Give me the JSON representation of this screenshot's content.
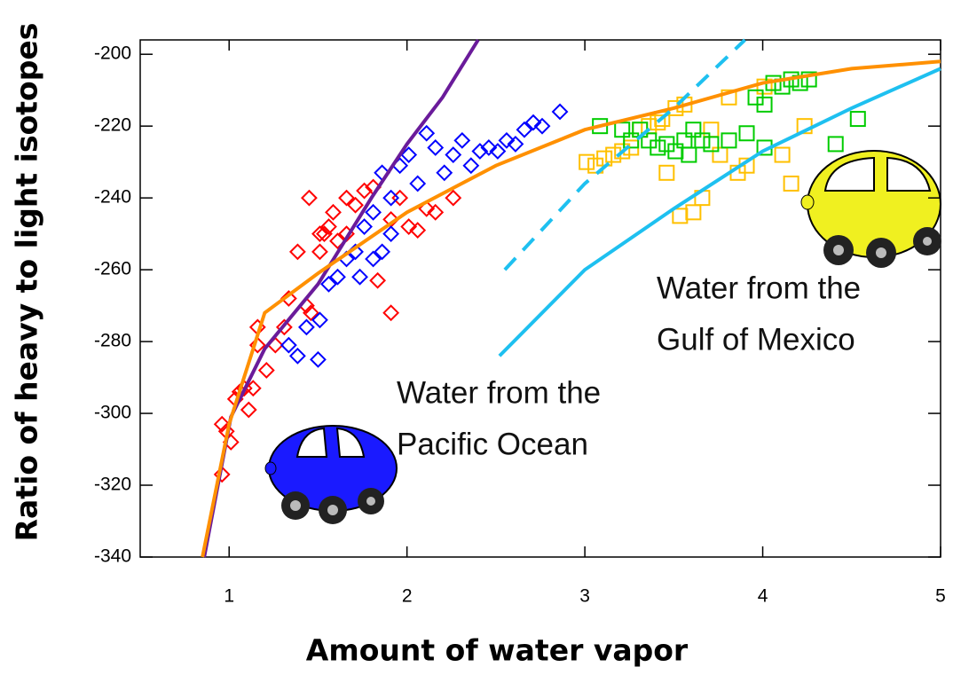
{
  "chart_data": {
    "type": "scatter",
    "xlabel": "Amount of water vapor",
    "ylabel": "Ratio of heavy to light isotopes",
    "xlim": [
      0.5,
      5
    ],
    "xticks": [
      1,
      2,
      3,
      4,
      5
    ],
    "ylim": [
      -340,
      -196
    ],
    "yticks": [
      -200,
      -220,
      -240,
      -260,
      -280,
      -300,
      -320,
      -340
    ],
    "series": [
      {
        "mode": "markers",
        "marker": "diamond",
        "color": "#ff0000",
        "x": [
          0.96,
          0.985,
          1.01,
          1.035,
          1.06,
          1.085,
          1.11,
          1.135,
          1.16,
          1.16,
          1.21,
          1.26,
          1.31,
          1.335,
          1.385,
          1.435,
          1.46,
          1.51,
          1.51,
          1.535,
          1.56,
          1.585,
          1.61,
          1.66,
          1.66,
          1.71,
          1.76,
          1.81,
          1.835,
          1.91,
          1.91,
          1.96,
          2.01,
          2.06,
          2.11,
          2.16,
          2.26,
          0.96,
          1.45
        ],
        "values": [
          -303,
          -305,
          -308,
          -296,
          -294,
          -293,
          -299,
          -293,
          -281,
          -276,
          -288,
          -281,
          -276,
          -268,
          -255,
          -270,
          -272,
          -255,
          -250,
          -250,
          -248,
          -244,
          -252,
          -250,
          -240,
          -242,
          -238,
          -237,
          -263,
          -272,
          -246,
          -240,
          -248,
          -249,
          -243,
          -244,
          -240,
          -317,
          -240
        ]
      },
      {
        "mode": "markers",
        "marker": "diamond",
        "color": "#0000ff",
        "x": [
          1.335,
          1.385,
          1.435,
          1.5,
          1.51,
          1.56,
          1.61,
          1.66,
          1.71,
          1.735,
          1.76,
          1.81,
          1.86,
          1.91,
          1.96,
          2.01,
          2.06,
          2.11,
          2.16,
          2.21,
          2.26,
          2.31,
          2.36,
          2.41,
          2.46,
          2.51,
          2.56,
          2.61,
          2.66,
          2.71,
          2.76,
          2.86,
          1.91,
          1.81,
          1.86
        ],
        "values": [
          -281,
          -284,
          -276,
          -285,
          -274,
          -264,
          -262,
          -257,
          -255,
          -262,
          -248,
          -244,
          -233,
          -240,
          -231,
          -228,
          -236,
          -222,
          -226,
          -233,
          -228,
          -224,
          -231,
          -227,
          -226,
          -227,
          -224,
          -225,
          -221,
          -219,
          -220,
          -216,
          -250,
          -257,
          -255
        ]
      },
      {
        "mode": "markers",
        "marker": "square",
        "color": "#ffc000",
        "x": [
          3.01,
          3.06,
          3.11,
          3.16,
          3.21,
          3.26,
          3.31,
          3.36,
          3.41,
          3.435,
          3.51,
          3.56,
          3.61,
          3.66,
          3.71,
          3.81,
          3.86,
          3.91,
          4.01,
          4.11,
          4.16,
          4.235,
          3.46,
          3.535,
          3.76
        ],
        "values": [
          -230,
          -231,
          -229,
          -228,
          -227,
          -226,
          -221,
          -220,
          -219,
          -218,
          -215,
          -214,
          -244,
          -240,
          -221,
          -212,
          -233,
          -231,
          -209,
          -228,
          -236,
          -220,
          -233,
          -245,
          -228
        ]
      },
      {
        "mode": "markers",
        "marker": "square",
        "color": "#00cc00",
        "x": [
          3.085,
          3.21,
          3.26,
          3.31,
          3.36,
          3.41,
          3.46,
          3.51,
          3.56,
          3.585,
          3.61,
          3.66,
          3.71,
          3.81,
          3.91,
          3.96,
          4.01,
          4.06,
          4.11,
          4.16,
          4.21,
          4.26,
          4.01,
          4.41,
          4.535
        ],
        "values": [
          -220,
          -221,
          -224,
          -221,
          -224,
          -226,
          -225,
          -227,
          -224,
          -228,
          -221,
          -224,
          -225,
          -224,
          -222,
          -212,
          -214,
          -208,
          -209,
          -207,
          -208,
          -207,
          -226,
          -225,
          -218
        ]
      },
      {
        "mode": "line",
        "color": "#6a1b9a",
        "x": [
          0.86,
          1.01,
          1.2,
          1.5,
          1.8,
          2.0,
          2.2,
          2.4
        ],
        "values": [
          -340,
          -301,
          -282,
          -264,
          -240,
          -225,
          -212,
          -196
        ]
      },
      {
        "mode": "line",
        "color": "#ff9000",
        "x": [
          0.85,
          1.0,
          1.2,
          1.5,
          2.0,
          2.5,
          3.0,
          3.5,
          4.0,
          4.5,
          5.0
        ],
        "values": [
          -340,
          -303,
          -272,
          -261,
          -244,
          -231,
          -221,
          -215,
          -208,
          -204,
          -202
        ]
      },
      {
        "mode": "line",
        "dash": true,
        "color": "#1ec0f0",
        "x": [
          2.55,
          3.0,
          3.5,
          3.9
        ],
        "values": [
          -260,
          -236,
          -215,
          -196
        ]
      },
      {
        "mode": "line",
        "color": "#1ec0f0",
        "x": [
          2.52,
          3.0,
          3.5,
          4.0,
          4.5,
          5.0
        ],
        "values": [
          -284,
          -260,
          -243,
          -227,
          -215,
          -204
        ]
      }
    ],
    "annotations": [
      [
        "Water from the",
        "Pacific Ocean"
      ],
      [
        "Water from the",
        "Gulf of Mexico"
      ]
    ]
  }
}
